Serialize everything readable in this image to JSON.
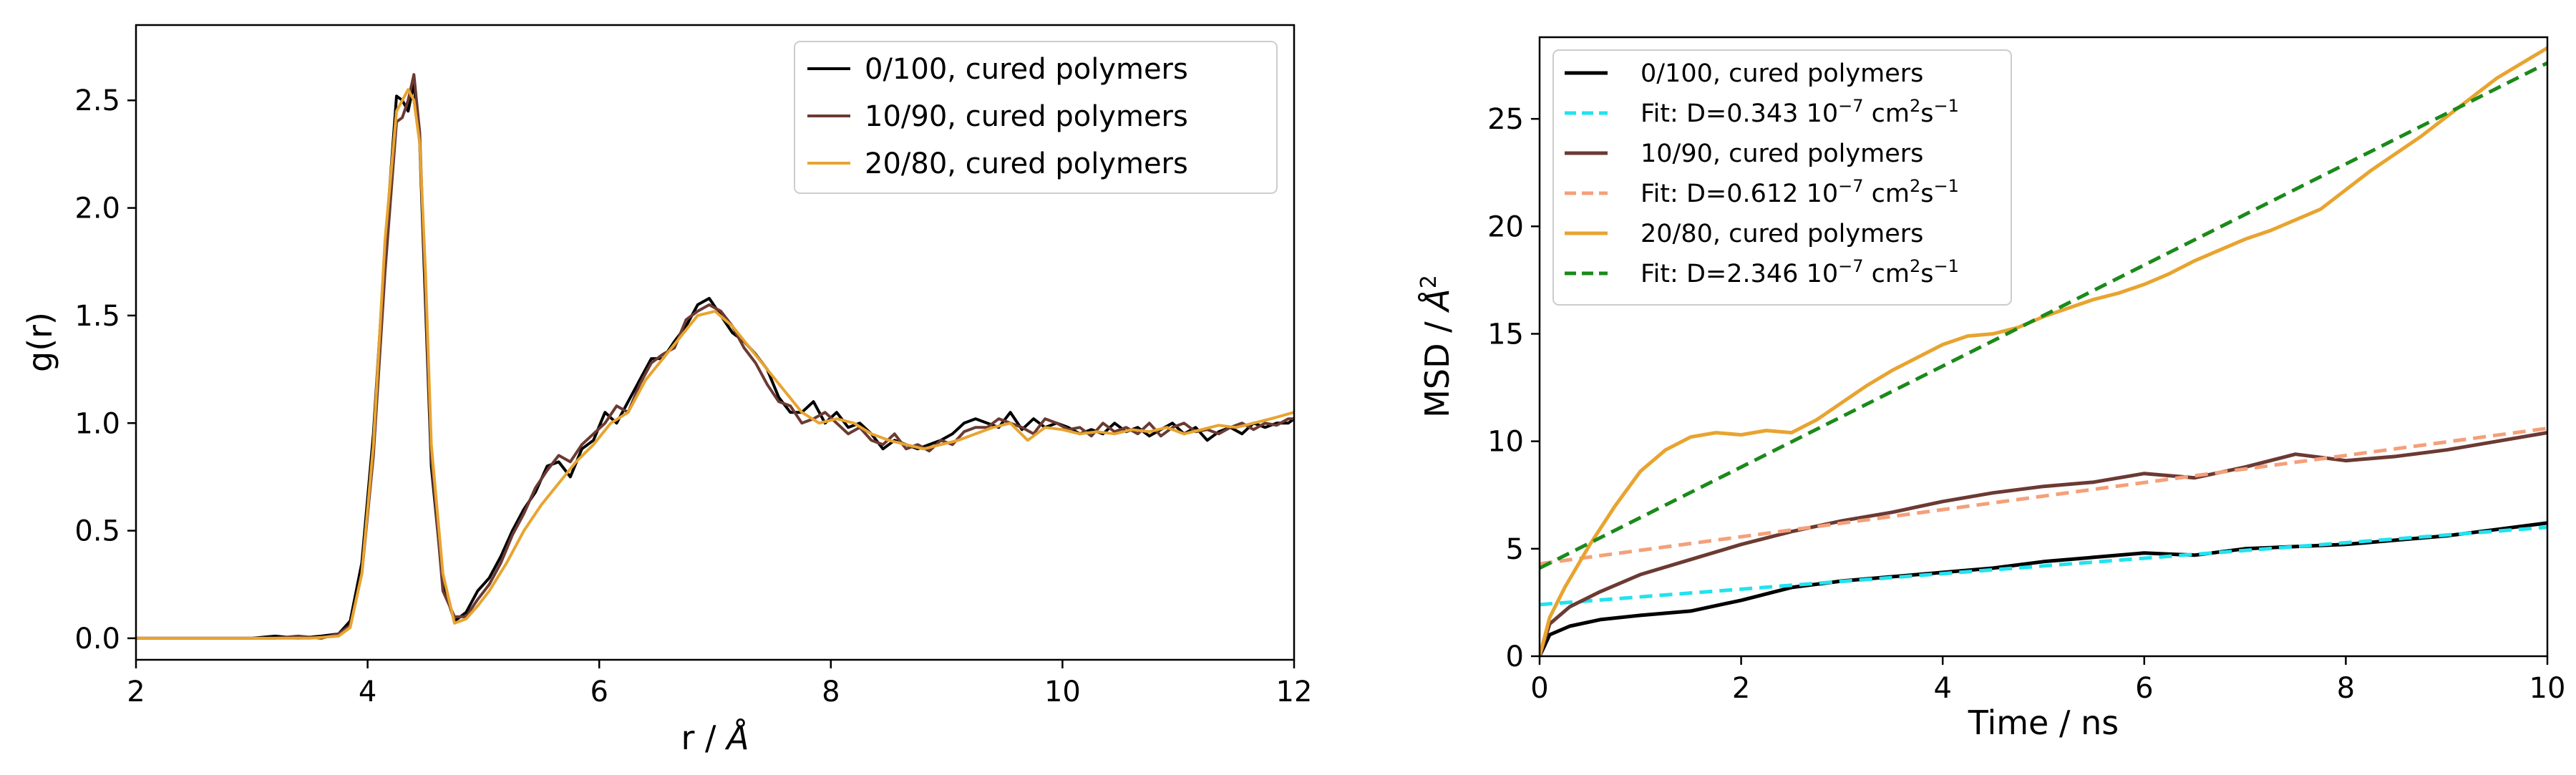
{
  "figure": {
    "colors": {
      "black": "#000000",
      "brown": "#6b3a33",
      "orange": "#e8a430",
      "cyan": "#22e2ee",
      "salmon": "#f4a07a",
      "green": "#1a8a1a",
      "axis": "#000000",
      "legend_edge": "#cccccc"
    }
  },
  "chart_data": [
    {
      "type": "line",
      "title": "",
      "xlabel_main": "r / ",
      "xlabel_unit": "Å",
      "ylabel": "g(r)",
      "xlim": [
        2,
        12
      ],
      "ylim": [
        -0.1,
        2.85
      ],
      "xticks": [
        2,
        4,
        6,
        8,
        10,
        12
      ],
      "xtick_labels": [
        "2",
        "4",
        "6",
        "8",
        "10",
        "12"
      ],
      "yticks": [
        0.0,
        0.5,
        1.0,
        1.5,
        2.0,
        2.5
      ],
      "ytick_labels": [
        "0.0",
        "0.5",
        "1.0",
        "1.5",
        "2.0",
        "2.5"
      ],
      "grid": false,
      "legend_position": "top-right",
      "series": [
        {
          "name": "0/100, cured polymers",
          "color_key": "black",
          "style": "solid",
          "x": [
            2,
            3,
            3.2,
            3.4,
            3.6,
            3.75,
            3.85,
            3.95,
            4.05,
            4.15,
            4.25,
            4.3,
            4.35,
            4.4,
            4.45,
            4.5,
            4.55,
            4.65,
            4.75,
            4.85,
            4.95,
            5.05,
            5.15,
            5.25,
            5.35,
            5.45,
            5.55,
            5.65,
            5.75,
            5.85,
            5.95,
            6.05,
            6.15,
            6.25,
            6.35,
            6.45,
            6.55,
            6.65,
            6.75,
            6.85,
            6.95,
            7.05,
            7.15,
            7.25,
            7.35,
            7.45,
            7.55,
            7.65,
            7.75,
            7.85,
            7.95,
            8.05,
            8.15,
            8.25,
            8.35,
            8.45,
            8.55,
            8.65,
            8.75,
            8.85,
            8.95,
            9.05,
            9.15,
            9.25,
            9.35,
            9.45,
            9.55,
            9.65,
            9.75,
            9.85,
            9.95,
            10.05,
            10.15,
            10.25,
            10.35,
            10.45,
            10.55,
            10.65,
            10.75,
            10.85,
            10.95,
            11.05,
            11.15,
            11.25,
            11.35,
            11.45,
            11.55,
            11.65,
            11.75,
            11.85,
            11.95,
            12
          ],
          "y": [
            0,
            0,
            0.01,
            0,
            0.01,
            0.02,
            0.08,
            0.35,
            0.95,
            1.8,
            2.52,
            2.5,
            2.45,
            2.58,
            2.3,
            1.55,
            0.8,
            0.25,
            0.08,
            0.12,
            0.22,
            0.28,
            0.38,
            0.5,
            0.6,
            0.68,
            0.8,
            0.82,
            0.75,
            0.88,
            0.92,
            1.05,
            1.0,
            1.1,
            1.2,
            1.3,
            1.3,
            1.38,
            1.45,
            1.55,
            1.58,
            1.5,
            1.42,
            1.38,
            1.32,
            1.25,
            1.12,
            1.05,
            1.05,
            1.1,
            1.0,
            1.05,
            0.98,
            1.0,
            0.95,
            0.88,
            0.92,
            0.9,
            0.88,
            0.9,
            0.92,
            0.95,
            1.0,
            1.02,
            1.0,
            0.98,
            1.05,
            0.97,
            1.02,
            0.98,
            1.0,
            0.98,
            0.95,
            0.97,
            0.95,
            1.0,
            0.96,
            0.98,
            0.94,
            0.97,
            1.0,
            0.95,
            0.98,
            0.92,
            0.96,
            0.98,
            0.95,
            1.0,
            0.98,
            1.0,
            1.0,
            1.02
          ]
        },
        {
          "name": "10/90, cured polymers",
          "color_key": "brown",
          "style": "solid",
          "x": [
            2,
            3,
            3.2,
            3.4,
            3.6,
            3.75,
            3.85,
            3.95,
            4.05,
            4.15,
            4.25,
            4.3,
            4.35,
            4.4,
            4.45,
            4.5,
            4.55,
            4.65,
            4.75,
            4.85,
            4.95,
            5.05,
            5.15,
            5.25,
            5.35,
            5.45,
            5.55,
            5.65,
            5.75,
            5.85,
            5.95,
            6.05,
            6.15,
            6.25,
            6.35,
            6.45,
            6.55,
            6.65,
            6.75,
            6.85,
            6.95,
            7.05,
            7.15,
            7.25,
            7.35,
            7.45,
            7.55,
            7.65,
            7.75,
            7.85,
            7.95,
            8.05,
            8.15,
            8.25,
            8.35,
            8.45,
            8.55,
            8.65,
            8.75,
            8.85,
            8.95,
            9.05,
            9.15,
            9.25,
            9.35,
            9.45,
            9.55,
            9.65,
            9.75,
            9.85,
            9.95,
            10.05,
            10.15,
            10.25,
            10.35,
            10.45,
            10.55,
            10.65,
            10.75,
            10.85,
            10.95,
            11.05,
            11.15,
            11.25,
            11.35,
            11.45,
            11.55,
            11.65,
            11.75,
            11.85,
            11.95,
            12
          ],
          "y": [
            0,
            0,
            0,
            0.01,
            0,
            0.02,
            0.06,
            0.3,
            0.85,
            1.7,
            2.4,
            2.42,
            2.5,
            2.62,
            2.35,
            1.6,
            0.85,
            0.22,
            0.1,
            0.1,
            0.18,
            0.25,
            0.35,
            0.48,
            0.58,
            0.7,
            0.78,
            0.85,
            0.82,
            0.9,
            0.95,
            1.0,
            1.08,
            1.05,
            1.18,
            1.28,
            1.32,
            1.35,
            1.48,
            1.52,
            1.55,
            1.52,
            1.45,
            1.35,
            1.28,
            1.18,
            1.1,
            1.08,
            1.0,
            1.02,
            1.05,
            1.0,
            0.95,
            0.98,
            0.92,
            0.9,
            0.95,
            0.88,
            0.9,
            0.87,
            0.92,
            0.9,
            0.96,
            0.98,
            0.98,
            1.02,
            1.0,
            0.98,
            0.95,
            1.02,
            1.0,
            0.97,
            0.98,
            0.94,
            1.0,
            0.96,
            0.98,
            0.95,
            1.0,
            0.94,
            0.98,
            1.0,
            0.96,
            0.97,
            0.95,
            0.98,
            1.0,
            0.97,
            1.0,
            0.99,
            1.02,
            1.02
          ]
        },
        {
          "name": "20/80, cured polymers",
          "color_key": "orange",
          "style": "solid",
          "x": [
            2,
            3,
            3.5,
            3.75,
            3.85,
            3.95,
            4.05,
            4.15,
            4.25,
            4.35,
            4.4,
            4.45,
            4.5,
            4.55,
            4.65,
            4.75,
            4.85,
            4.95,
            5.05,
            5.2,
            5.35,
            5.5,
            5.65,
            5.8,
            5.95,
            6.1,
            6.25,
            6.4,
            6.55,
            6.7,
            6.85,
            7.0,
            7.15,
            7.3,
            7.45,
            7.6,
            7.75,
            7.9,
            8.05,
            8.2,
            8.35,
            8.5,
            8.65,
            8.8,
            8.95,
            9.1,
            9.25,
            9.4,
            9.55,
            9.7,
            9.85,
            10.0,
            10.15,
            10.3,
            10.45,
            10.6,
            10.75,
            10.9,
            11.05,
            11.2,
            11.35,
            11.5,
            11.65,
            11.8,
            12
          ],
          "y": [
            0,
            0,
            0,
            0.01,
            0.05,
            0.3,
            0.9,
            1.85,
            2.45,
            2.55,
            2.5,
            2.3,
            1.7,
            0.9,
            0.3,
            0.07,
            0.09,
            0.15,
            0.22,
            0.35,
            0.5,
            0.62,
            0.72,
            0.82,
            0.9,
            1.0,
            1.05,
            1.2,
            1.3,
            1.4,
            1.5,
            1.52,
            1.45,
            1.35,
            1.25,
            1.15,
            1.05,
            1.0,
            1.02,
            1.0,
            0.95,
            0.92,
            0.9,
            0.88,
            0.9,
            0.92,
            0.95,
            0.98,
            1.0,
            0.92,
            0.98,
            0.97,
            0.95,
            0.96,
            0.95,
            0.97,
            0.96,
            0.98,
            0.95,
            0.97,
            0.99,
            0.98,
            1.0,
            1.02,
            1.05
          ]
        }
      ]
    },
    {
      "type": "line",
      "title": "",
      "xlabel": "Time / ns",
      "ylabel_main": "MSD / ",
      "ylabel_unit": "Å",
      "ylabel_sup": "2",
      "xlim": [
        0,
        10
      ],
      "ylim": [
        0,
        28.8
      ],
      "xticks": [
        0,
        2,
        4,
        6,
        8,
        10
      ],
      "xtick_labels": [
        "0",
        "2",
        "4",
        "6",
        "8",
        "10"
      ],
      "yticks": [
        0,
        5,
        10,
        15,
        20,
        25
      ],
      "ytick_labels": [
        "0",
        "5",
        "10",
        "15",
        "20",
        "25"
      ],
      "grid": false,
      "legend_position": "top-left",
      "series": [
        {
          "name": "0/100, cured polymers",
          "color_key": "black",
          "style": "solid",
          "x": [
            0,
            0.1,
            0.3,
            0.6,
            1.0,
            1.5,
            2.0,
            2.5,
            3.0,
            3.5,
            4.0,
            4.5,
            5.0,
            5.5,
            6.0,
            6.5,
            7.0,
            7.5,
            8.0,
            8.5,
            9.0,
            9.5,
            10.0
          ],
          "y": [
            0,
            1.0,
            1.4,
            1.7,
            1.9,
            2.1,
            2.6,
            3.2,
            3.5,
            3.7,
            3.9,
            4.1,
            4.4,
            4.6,
            4.8,
            4.7,
            5.0,
            5.1,
            5.2,
            5.4,
            5.6,
            5.9,
            6.2
          ]
        },
        {
          "name": "Fit: D=0.343 ",
          "name_exp_base": "10",
          "name_exp": "−7",
          "name_units": " cm",
          "name_units_sup": "2",
          "name_units2": "s",
          "name_units2_sup": "−1",
          "color_key": "cyan",
          "style": "dashed",
          "x": [
            0,
            10
          ],
          "y": [
            2.4,
            6.0
          ]
        },
        {
          "name": "10/90, cured polymers",
          "color_key": "brown",
          "style": "solid",
          "x": [
            0,
            0.1,
            0.3,
            0.6,
            1.0,
            1.5,
            2.0,
            2.5,
            3.0,
            3.5,
            4.0,
            4.5,
            5.0,
            5.5,
            6.0,
            6.5,
            7.0,
            7.5,
            8.0,
            8.5,
            9.0,
            9.5,
            10.0
          ],
          "y": [
            0,
            1.5,
            2.3,
            3.0,
            3.8,
            4.5,
            5.2,
            5.8,
            6.3,
            6.7,
            7.2,
            7.6,
            7.9,
            8.1,
            8.5,
            8.3,
            8.8,
            9.4,
            9.1,
            9.3,
            9.6,
            10.0,
            10.4
          ]
        },
        {
          "name": "Fit: D=0.612 ",
          "name_exp_base": "10",
          "name_exp": "−7",
          "name_units": " cm",
          "name_units_sup": "2",
          "name_units2": "s",
          "name_units2_sup": "−1",
          "color_key": "salmon",
          "style": "dashed",
          "x": [
            0,
            10
          ],
          "y": [
            4.3,
            10.6
          ]
        },
        {
          "name": "20/80, cured polymers",
          "color_key": "orange",
          "style": "solid",
          "x": [
            0,
            0.1,
            0.25,
            0.5,
            0.75,
            1.0,
            1.25,
            1.5,
            1.75,
            2.0,
            2.25,
            2.5,
            2.75,
            3.0,
            3.25,
            3.5,
            3.75,
            4.0,
            4.25,
            4.5,
            4.75,
            5.0,
            5.25,
            5.5,
            5.75,
            6.0,
            6.25,
            6.5,
            6.75,
            7.0,
            7.25,
            7.5,
            7.75,
            8.0,
            8.25,
            8.5,
            8.75,
            9.0,
            9.25,
            9.5,
            9.75,
            10.0
          ],
          "y": [
            0,
            1.8,
            3.2,
            5.2,
            7.0,
            8.6,
            9.6,
            10.2,
            10.4,
            10.3,
            10.5,
            10.4,
            11.0,
            11.8,
            12.6,
            13.3,
            13.9,
            14.5,
            14.9,
            15.0,
            15.3,
            15.8,
            16.2,
            16.6,
            16.9,
            17.3,
            17.8,
            18.4,
            18.9,
            19.4,
            19.8,
            20.3,
            20.8,
            21.7,
            22.6,
            23.4,
            24.2,
            25.1,
            26.0,
            26.9,
            27.6,
            28.3
          ]
        },
        {
          "name": "Fit: D=2.346 ",
          "name_exp_base": "10",
          "name_exp": "−7",
          "name_units": " cm",
          "name_units_sup": "2",
          "name_units2": "s",
          "name_units2_sup": "−1",
          "color_key": "green",
          "style": "dashed",
          "x": [
            0,
            10
          ],
          "y": [
            4.1,
            27.6
          ]
        }
      ]
    }
  ]
}
